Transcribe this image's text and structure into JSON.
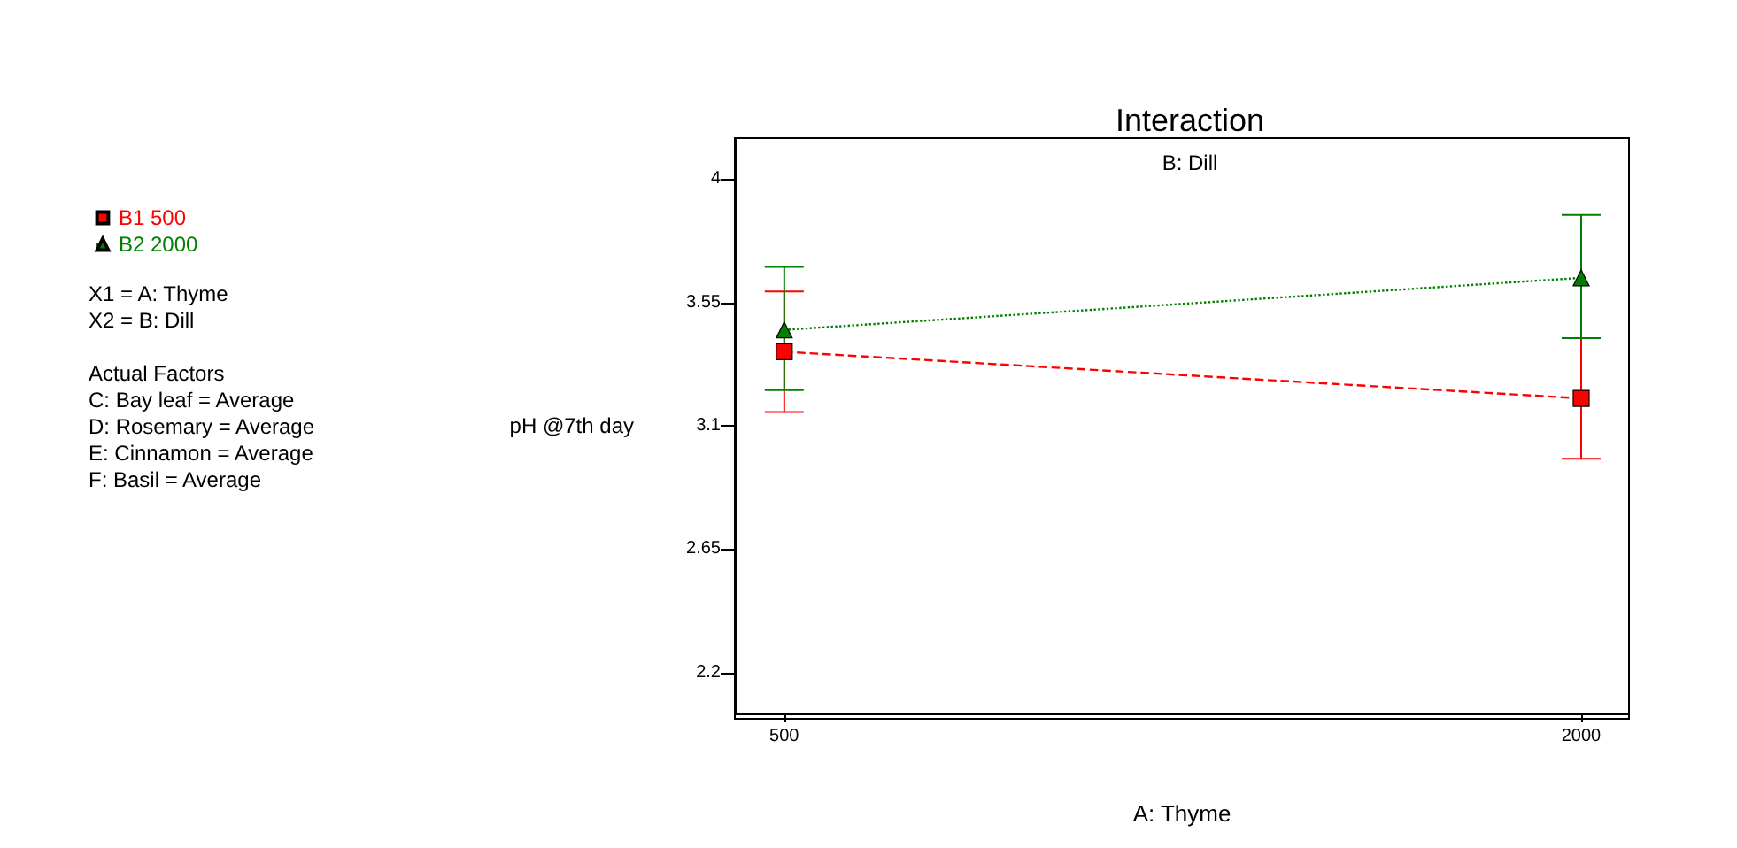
{
  "chart_data": {
    "type": "line",
    "title": "Interaction",
    "subtitle": "B: Dill",
    "xlabel": "A: Thyme",
    "ylabel": "pH @7th day",
    "x": [
      500,
      2000
    ],
    "xlim": [
      407,
      2090
    ],
    "xticks": [
      500,
      2000
    ],
    "ylim": [
      2.05,
      4.15
    ],
    "yticks": [
      2.2,
      2.65,
      3.1,
      3.55,
      4
    ],
    "series": [
      {
        "name": "B1 500",
        "color": "#ff0000",
        "values": [
          3.37,
          3.2
        ],
        "errors": [
          [
            3.15,
            3.59
          ],
          [
            2.98,
            3.42
          ]
        ],
        "marker": "square",
        "line_style": "dashed"
      },
      {
        "name": "B2 2000",
        "color": "#008000",
        "values": [
          3.45,
          3.64
        ],
        "errors": [
          [
            3.23,
            3.68
          ],
          [
            3.42,
            3.87
          ]
        ],
        "marker": "triangle",
        "line_style": "dotted"
      }
    ],
    "legend": "left",
    "grid": false,
    "annotations": [
      "X1 = A: Thyme",
      "X2 = B: Dill",
      "Actual Factors",
      "C: Bay leaf = Average",
      "D: Rosemary = Average",
      "E: Cinnamon = Average",
      "F: Basil = Average"
    ]
  }
}
